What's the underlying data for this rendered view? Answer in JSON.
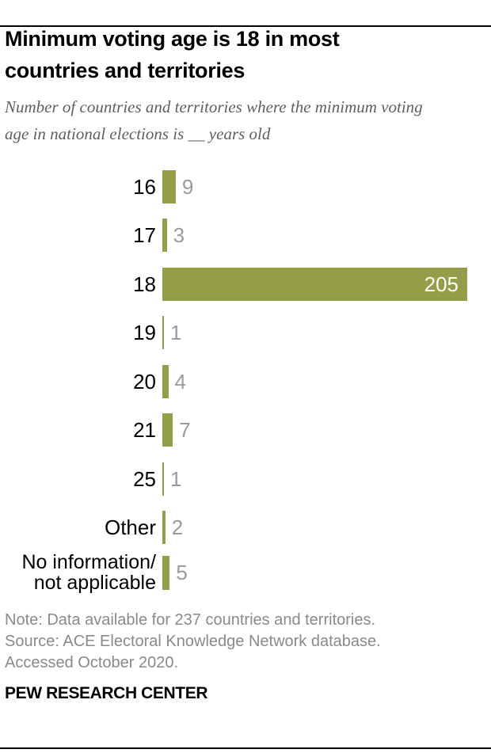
{
  "report": {
    "title": "Minimum voting age is 18 in most countries and territories",
    "subtitle": "Number of countries and territories where the minimum voting age in national elections is __ years old",
    "note": "Note: Data available for 237 countries and territories.",
    "source": "Source: ACE Electoral Knowledge Network database. Accessed October 2020.",
    "branding": "PEW RESEARCH CENTER"
  },
  "chart_data": {
    "type": "bar",
    "orientation": "horizontal",
    "title": "Minimum voting age is 18 in most countries and territories",
    "subtitle": "Number of countries and territories where the minimum voting age in national elections is __ years old",
    "categories": [
      "16",
      "17",
      "18",
      "19",
      "20",
      "21",
      "25",
      "Other",
      "No information/\nnot applicable"
    ],
    "values": [
      9,
      3,
      205,
      1,
      4,
      7,
      1,
      2,
      5
    ],
    "value_labels": [
      "9",
      "3",
      "205",
      "1",
      "4",
      "7",
      "1",
      "2",
      "5"
    ],
    "xlim": [
      0,
      205
    ],
    "grid": false,
    "axes_shown": false,
    "value_label_inside_bar_for": "18",
    "legend": "none"
  },
  "colors": {
    "bar": "#949d48",
    "value_label": "#9b9b9b",
    "value_label_inside": "#ffffff",
    "category_label": "#000000",
    "title_text": "#000000",
    "subtitle_text": "#5f5f5f",
    "note_text": "#8a8a8a",
    "rule": "#000000",
    "background": "#ffffff"
  }
}
